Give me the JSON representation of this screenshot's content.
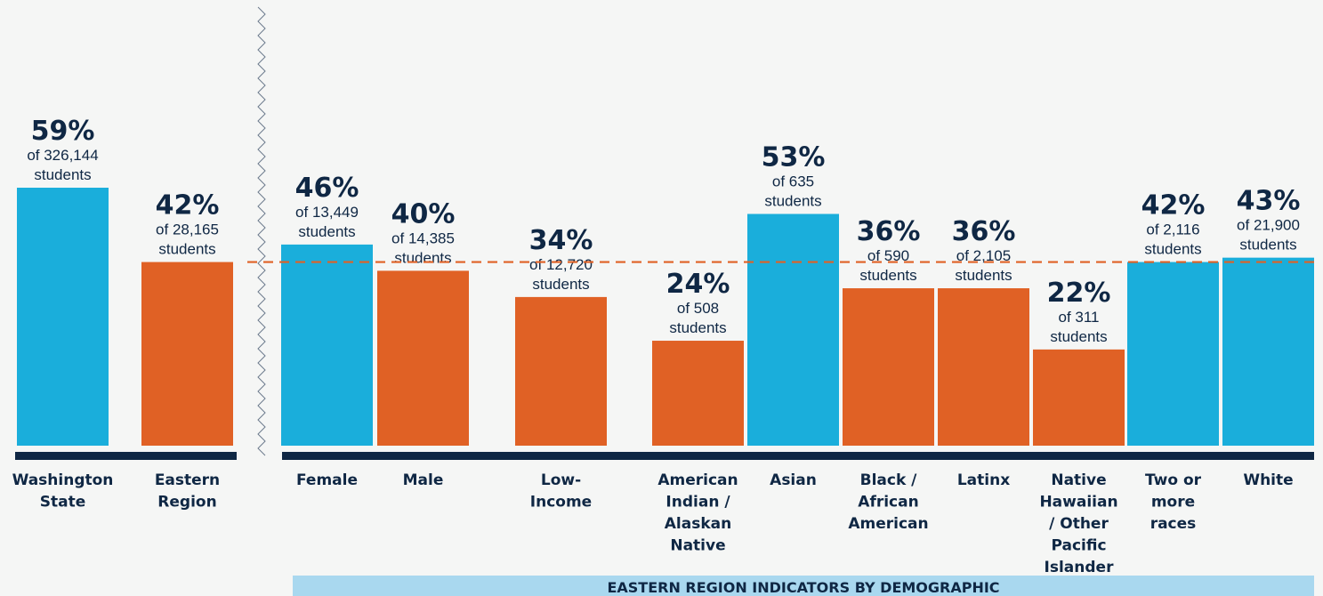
{
  "chart_data": {
    "type": "bar",
    "ylim": [
      0,
      100
    ],
    "reference_value": 42,
    "colors": {
      "above": "#1aaedb",
      "below": "#e06125",
      "text": "#0f2744",
      "baseline": "#0f2744",
      "reference_line": "#e06125",
      "banner": "#a9d8ef"
    },
    "banner": "EASTERN REGION INDICATORS BY DEMOGRAPHIC",
    "bars": [
      {
        "category": [
          "Washington",
          "State"
        ],
        "value": 59,
        "label": "59%",
        "count": "of 326,144",
        "unit": "students",
        "color_key": "above"
      },
      {
        "category": [
          "Eastern",
          "Region"
        ],
        "value": 42,
        "label": "42%",
        "count": "of 28,165",
        "unit": "students",
        "color_key": "below"
      },
      {
        "category": [
          "Female"
        ],
        "value": 46,
        "label": "46%",
        "count": "of 13,449",
        "unit": "students",
        "color_key": "above"
      },
      {
        "category": [
          "Male"
        ],
        "value": 40,
        "label": "40%",
        "count": "of 14,385",
        "unit": "students",
        "color_key": "below"
      },
      {
        "category": [
          "Low-",
          "Income"
        ],
        "value": 34,
        "label": "34%",
        "count": "of 12,720",
        "unit": "students",
        "color_key": "below"
      },
      {
        "category": [
          "American",
          "Indian /",
          "Alaskan",
          "Native"
        ],
        "value": 24,
        "label": "24%",
        "count": "of 508",
        "unit": "students",
        "color_key": "below"
      },
      {
        "category": [
          "Asian"
        ],
        "value": 53,
        "label": "53%",
        "count": "of 635",
        "unit": "students",
        "color_key": "above"
      },
      {
        "category": [
          "Black /",
          "African",
          "American"
        ],
        "value": 36,
        "label": "36%",
        "count": "of 590",
        "unit": "students",
        "color_key": "below"
      },
      {
        "category": [
          "Latinx"
        ],
        "value": 36,
        "label": "36%",
        "count": "of 2,105",
        "unit": "students",
        "color_key": "below"
      },
      {
        "category": [
          "Native",
          "Hawaiian",
          "/ Other",
          "Pacific",
          "Islander"
        ],
        "value": 22,
        "label": "22%",
        "count": "of 311",
        "unit": "students",
        "color_key": "below"
      },
      {
        "category": [
          "Two or",
          "more",
          "races"
        ],
        "value": 42,
        "label": "42%",
        "count": "of 2,116",
        "unit": "students",
        "color_key": "above"
      },
      {
        "category": [
          "White"
        ],
        "value": 43,
        "label": "43%",
        "count": "of 21,900",
        "unit": "students",
        "color_key": "above"
      }
    ]
  }
}
